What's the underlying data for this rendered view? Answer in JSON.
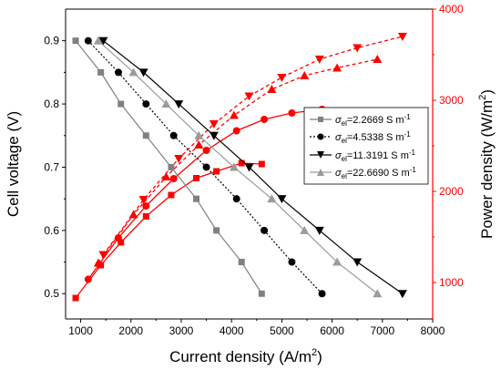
{
  "chart_data": {
    "type": "line",
    "xlabel_main": "Current density (A/m",
    "xlabel_sup": "2",
    "xlabel_end": ")",
    "ylabel_left": "Cell voltage (V)",
    "ylabel_right_main": "Power density (W/m",
    "ylabel_right_sup": "2",
    "ylabel_right_end": ")",
    "xlim": [
      700,
      8000
    ],
    "ylim_left": [
      0.46,
      0.95
    ],
    "ylim_right": [
      600,
      4000
    ],
    "x_ticks": [
      "1000",
      "2000",
      "3000",
      "4000",
      "5000",
      "6000",
      "7000",
      "8000"
    ],
    "y_left_ticks": [
      "0.5",
      "0.6",
      "0.7",
      "0.8",
      "0.9"
    ],
    "y_right_ticks": [
      "1000",
      "2000",
      "3000",
      "4000"
    ],
    "colors": {
      "voltage_1": "#808080",
      "voltage_2": "#000000",
      "voltage_3": "#000000",
      "voltage_4": "#9b9b9b",
      "power": "#ff0000"
    },
    "grid": false,
    "legend_position": "center-right",
    "legend": [
      {
        "sym": "σ",
        "sub": "el",
        "text": "=2.2669 S m",
        "sup": "-1"
      },
      {
        "sym": "σ",
        "sub": "el",
        "text": "=4.5338 S m",
        "sup": "-1"
      },
      {
        "sym": "σ",
        "sub": "el",
        "text": "=11.3191 S m",
        "sup": "-1"
      },
      {
        "sym": "σ",
        "sub": "el",
        "text": "=22.6690 S m",
        "sup": "-1"
      }
    ],
    "voltage_series": [
      {
        "x": [
          900,
          1400,
          1800,
          2300,
          2800,
          3300,
          3700,
          4200,
          4600
        ],
        "y": [
          0.9,
          0.85,
          0.8,
          0.75,
          0.7,
          0.65,
          0.6,
          0.55,
          0.5
        ]
      },
      {
        "x": [
          1150,
          1750,
          2300,
          2850,
          3500,
          4100,
          4650,
          5200,
          5800
        ],
        "y": [
          0.9,
          0.85,
          0.8,
          0.75,
          0.7,
          0.65,
          0.6,
          0.55,
          0.5
        ]
      },
      {
        "x": [
          1450,
          2250,
          2950,
          3650,
          4350,
          5000,
          5750,
          6500,
          7400
        ],
        "y": [
          0.9,
          0.85,
          0.8,
          0.75,
          0.7,
          0.65,
          0.6,
          0.55,
          0.5
        ]
      },
      {
        "x": [
          1350,
          2050,
          2700,
          3350,
          4050,
          4800,
          5450,
          6100,
          6900
        ],
        "y": [
          0.9,
          0.85,
          0.8,
          0.75,
          0.7,
          0.65,
          0.6,
          0.55,
          0.5
        ]
      }
    ],
    "power_series": [
      {
        "x": [
          900,
          1400,
          1800,
          2300,
          2800,
          3300,
          3700,
          4200,
          4600
        ],
        "y": [
          830,
          1190,
          1440,
          1725,
          1960,
          2145,
          2220,
          2310,
          2300
        ]
      },
      {
        "x": [
          1150,
          1750,
          2300,
          2850,
          3500,
          4100,
          4650,
          5200,
          5800
        ],
        "y": [
          1035,
          1490,
          1840,
          2140,
          2450,
          2665,
          2790,
          2860,
          2900
        ]
      },
      {
        "x": [
          1450,
          2250,
          2950,
          3650,
          4350,
          5000,
          5750,
          6500,
          7400
        ],
        "y": [
          1305,
          1910,
          2360,
          2740,
          3045,
          3250,
          3450,
          3575,
          3700
        ]
      },
      {
        "x": [
          1350,
          2050,
          2700,
          3350,
          4050,
          4800,
          5450,
          6100,
          6900
        ],
        "y": [
          1215,
          1745,
          2160,
          2510,
          2835,
          3120,
          3270,
          3355,
          3450
        ]
      }
    ]
  }
}
